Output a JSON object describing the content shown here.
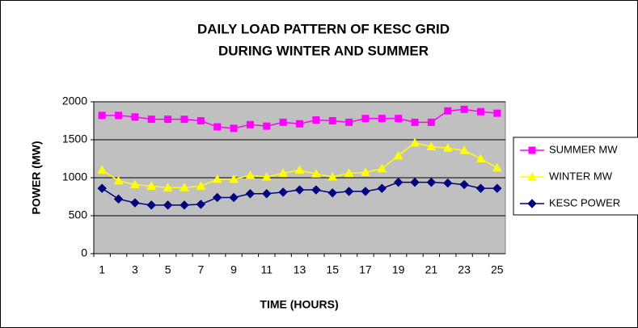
{
  "chart_data": {
    "type": "line",
    "title": [
      "DAILY LOAD PATTERN OF KESC GRID",
      "DURING WINTER AND SUMMER"
    ],
    "x_label": "TIME (HOURS)",
    "y_label": "POWER (MW)",
    "categories": [
      1,
      null,
      3,
      null,
      5,
      null,
      7,
      null,
      9,
      null,
      11,
      null,
      13,
      null,
      15,
      null,
      17,
      null,
      19,
      null,
      21,
      null,
      23,
      null,
      25
    ],
    "series": [
      {
        "name": "SUMMER MW",
        "color": "#ff00ff",
        "marker": "square",
        "values": [
          1820,
          1820,
          1800,
          1770,
          1770,
          1770,
          1750,
          1670,
          1650,
          1700,
          1680,
          1730,
          1710,
          1760,
          1750,
          1730,
          1780,
          1780,
          1780,
          1730,
          1730,
          1880,
          1900,
          1870,
          1850
        ]
      },
      {
        "name": "WINTER MW",
        "color": "#ffff00",
        "marker": "triangle",
        "values": [
          1100,
          960,
          910,
          890,
          870,
          870,
          890,
          980,
          980,
          1030,
          1010,
          1060,
          1100,
          1050,
          1010,
          1060,
          1070,
          1120,
          1290,
          1460,
          1410,
          1390,
          1360,
          1250,
          1130
        ]
      },
      {
        "name": "KESC POWER",
        "color": "#000080",
        "marker": "diamond",
        "values": [
          860,
          720,
          670,
          640,
          640,
          640,
          650,
          740,
          740,
          790,
          790,
          810,
          840,
          840,
          800,
          820,
          820,
          860,
          940,
          940,
          940,
          930,
          910,
          860,
          860
        ]
      }
    ],
    "ylim": [
      0,
      2000
    ],
    "yticks": [
      0,
      500,
      1000,
      1500,
      2000
    ],
    "grid": true,
    "plot_background": "#c0c0c0",
    "legend": "right"
  }
}
